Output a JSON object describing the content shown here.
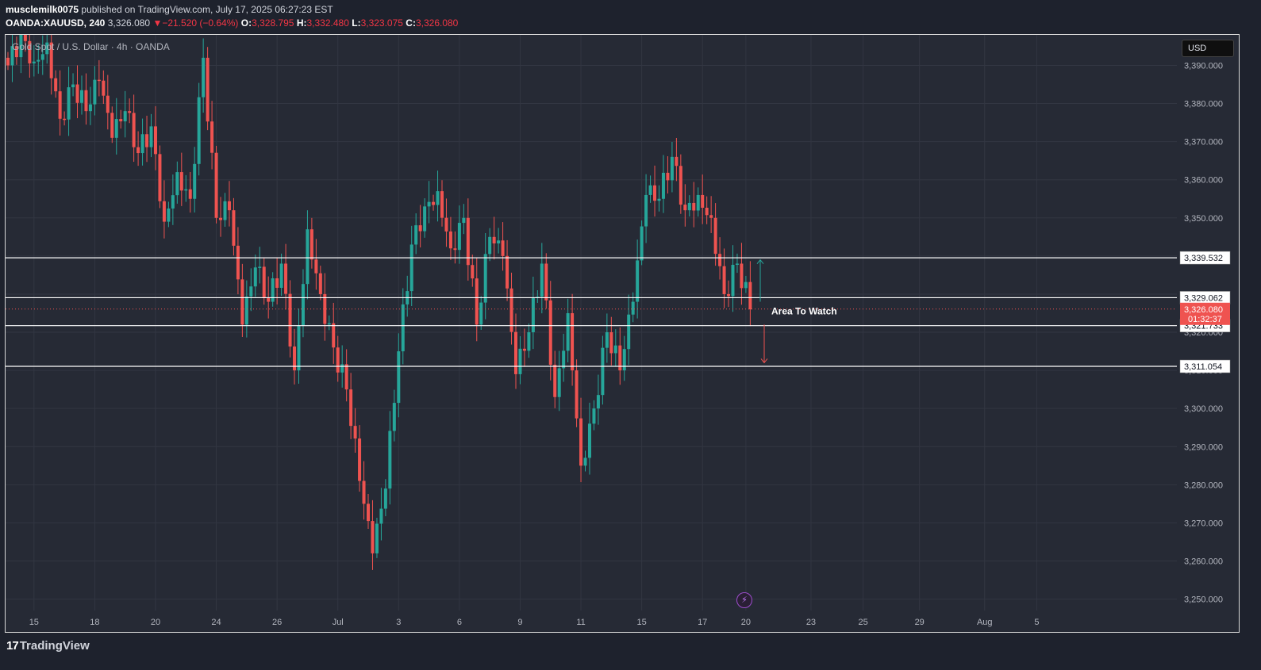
{
  "header": {
    "author": "musclemilk0075",
    "published": " published on TradingView.com, July 17, 2025 06:27:23 EST",
    "symbol": "OANDA:XAUUSD, 240",
    "last": "3,326.080",
    "change_arrow": "▼",
    "change": "−21.520 (−0.64%)",
    "o_label": "O:",
    "o": "3,328.795",
    "h_label": "H:",
    "h": "3,332.480",
    "l_label": "L:",
    "l": "3,323.075",
    "c_label": "C:",
    "c": "3,326.080"
  },
  "instrument": "Gold Spot / U.S. Dollar · 4h · OANDA",
  "currency_button": "USD",
  "footer": {
    "logo_mark": "17",
    "brand": "TradingView"
  },
  "colors": {
    "up": "#26a69a",
    "down": "#ef5350",
    "background": "#262a35",
    "grid": "#323642",
    "line": "#ffffff"
  },
  "icons": {
    "flash": "lightning-icon"
  },
  "chart_data": {
    "type": "candlestick",
    "ylim": [
      3247,
      3398
    ],
    "y_ticks": [
      "3,390.000",
      "3,380.000",
      "3,370.000",
      "3,360.000",
      "3,350.000",
      "3,340.000",
      "3,330.000",
      "3,320.000",
      "3,310.000",
      "3,300.000",
      "3,290.000",
      "3,280.000",
      "3,270.000",
      "3,260.000",
      "3,250.000"
    ],
    "y_tick_values": [
      3390,
      3380,
      3370,
      3360,
      3350,
      3340,
      3330,
      3320,
      3310,
      3300,
      3290,
      3280,
      3270,
      3260,
      3250
    ],
    "x_ticks": [
      "15",
      "18",
      "20",
      "24",
      "26",
      "Jul",
      "3",
      "6",
      "9",
      "11",
      "15",
      "17",
      "20",
      "23",
      "25",
      "29",
      "Aug",
      "5"
    ],
    "x_tick_index": [
      6,
      20,
      34,
      48,
      62,
      76,
      90,
      104,
      118,
      132,
      146,
      160,
      170,
      185,
      197,
      210,
      225,
      237
    ],
    "candle_anchors": [
      [
        0,
        3390
      ],
      [
        3,
        3398
      ],
      [
        6,
        3391
      ],
      [
        9,
        3396
      ],
      [
        12,
        3376
      ],
      [
        15,
        3385
      ],
      [
        18,
        3378
      ],
      [
        21,
        3386
      ],
      [
        24,
        3371
      ],
      [
        27,
        3378
      ],
      [
        30,
        3367
      ],
      [
        33,
        3374
      ],
      [
        36,
        3349
      ],
      [
        39,
        3362
      ],
      [
        42,
        3355
      ],
      [
        45,
        3392
      ],
      [
        48,
        3350
      ],
      [
        51,
        3352
      ],
      [
        54,
        3322
      ],
      [
        57,
        3337
      ],
      [
        60,
        3328
      ],
      [
        63,
        3338
      ],
      [
        66,
        3310
      ],
      [
        69,
        3347
      ],
      [
        72,
        3330
      ],
      [
        75,
        3316
      ],
      [
        78,
        3305
      ],
      [
        81,
        3281
      ],
      [
        84,
        3262
      ],
      [
        87,
        3279
      ],
      [
        90,
        3315
      ],
      [
        93,
        3343
      ],
      [
        96,
        3353
      ],
      [
        99,
        3357
      ],
      [
        102,
        3342
      ],
      [
        105,
        3350
      ],
      [
        108,
        3322
      ],
      [
        111,
        3345
      ],
      [
        114,
        3340
      ],
      [
        117,
        3309
      ],
      [
        120,
        3320
      ],
      [
        123,
        3338
      ],
      [
        126,
        3303
      ],
      [
        129,
        3325
      ],
      [
        132,
        3285
      ],
      [
        135,
        3300
      ],
      [
        138,
        3320
      ],
      [
        141,
        3310
      ],
      [
        144,
        3328
      ],
      [
        147,
        3356
      ],
      [
        150,
        3355
      ],
      [
        153,
        3366
      ],
      [
        156,
        3352
      ],
      [
        159,
        3356
      ],
      [
        162,
        3350
      ],
      [
        165,
        3330
      ],
      [
        168,
        3338
      ],
      [
        171,
        3326
      ]
    ],
    "horizontal_lines": [
      {
        "value": 3339.532,
        "label": "3,339.532"
      },
      {
        "value": 3329.062,
        "label": "3,329.062"
      },
      {
        "value": 3321.733,
        "label": "3,321.733"
      },
      {
        "value": 3311.054,
        "label": "3,311.054"
      }
    ],
    "current_price": {
      "value": 3326.08,
      "label": "3,326.080",
      "countdown": "01:32:37"
    },
    "annotation": "Area To Watch",
    "arrows": [
      {
        "direction": "up",
        "from": 3328,
        "to": 3339
      },
      {
        "direction": "down",
        "from": 3322,
        "to": 3312
      }
    ],
    "grid": true
  }
}
